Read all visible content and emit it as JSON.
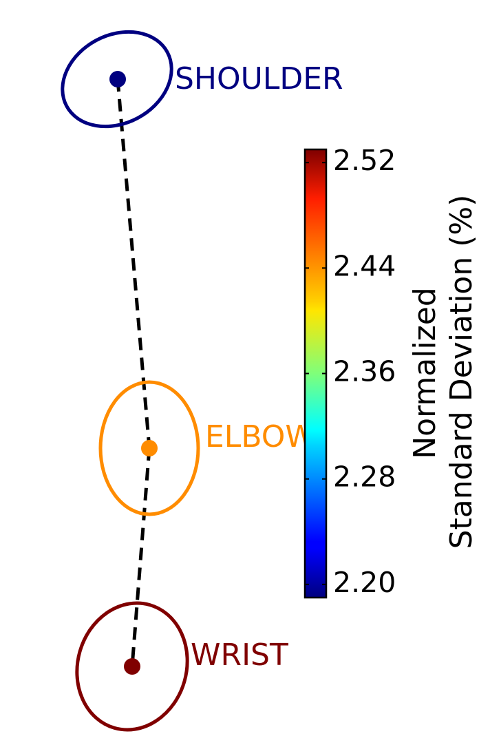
{
  "chart_data": {
    "type": "scatter",
    "title": "",
    "xlabel": "",
    "ylabel": "",
    "joints": [
      {
        "name": "SHOULDER",
        "value": 2.2,
        "color": "#000080"
      },
      {
        "name": "ELBOW",
        "value": 2.44,
        "color": "#ff8c00"
      },
      {
        "name": "WRIST",
        "value": 2.52,
        "color": "#800000"
      }
    ],
    "connection": "dashed",
    "colorbar": {
      "colormap": "jet",
      "min": 2.19,
      "max": 2.53,
      "ticks": [
        "2.52",
        "2.44",
        "2.36",
        "2.28",
        "2.20"
      ],
      "tick_values": [
        2.52,
        2.44,
        2.36,
        2.28,
        2.2
      ],
      "label_line1": "Normalized",
      "label_line2": "Standard Deviation (%)"
    }
  }
}
